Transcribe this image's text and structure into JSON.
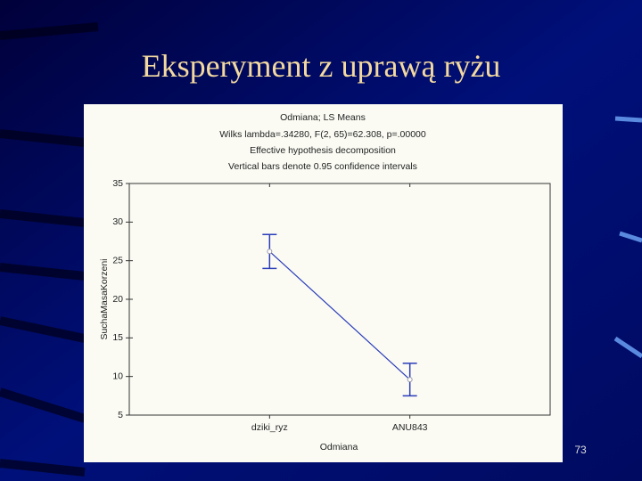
{
  "slide": {
    "title": "Eksperyment z uprawą ryżu",
    "page_number": "73"
  },
  "chart_data": {
    "type": "line",
    "title": "Odmiana; LS Means",
    "subtitles": [
      "Wilks lambda=.34280, F(2, 65)=62.308, p=.00000",
      "Effective hypothesis decomposition",
      "Vertical bars denote 0.95 confidence intervals"
    ],
    "x_label": "Odmiana",
    "y_label": "SuchaMasaKorzeni",
    "categories": [
      "dziki_ryz",
      "ANU843"
    ],
    "values": [
      26.2,
      9.6
    ],
    "errors": [
      2.2,
      2.1
    ],
    "color": "#2a3cb8",
    "ylim": [
      5,
      35
    ],
    "yticks": [
      5,
      10,
      15,
      20,
      25,
      30,
      35
    ]
  }
}
